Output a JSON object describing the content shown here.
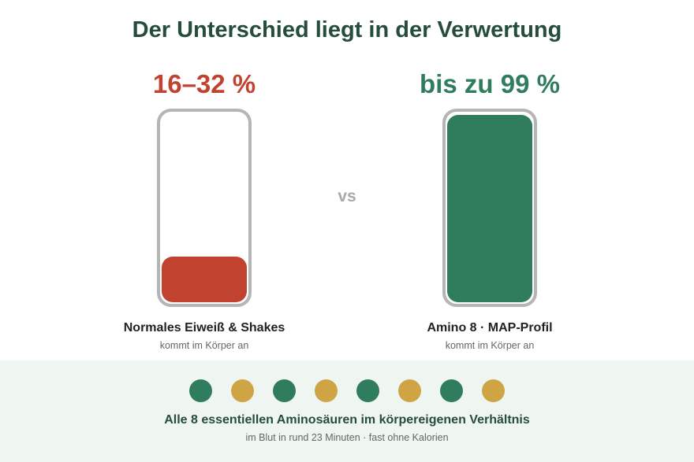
{
  "title": "Der Unterschied liegt in der Verwertung",
  "left": {
    "percent": "16–32 %",
    "fill_fraction": 0.24,
    "label": "Normales Eiweiß & Shakes",
    "sublabel": "kommt im Körper an",
    "color": "#c1432f"
  },
  "vs": "vs",
  "right": {
    "percent": "bis zu 99 %",
    "fill_fraction": 0.99,
    "label": "Amino 8 · MAP-Profil",
    "sublabel": "kommt im Körper an",
    "color": "#2f7d5c"
  },
  "bottom": {
    "dots": [
      "green",
      "gold",
      "green",
      "gold",
      "green",
      "gold",
      "green",
      "gold"
    ],
    "title": "Alle 8 essentiellen Aminosäuren im körpereigenen Verhältnis",
    "subtitle": "im Blut in rund 23 Minuten · fast ohne Kalorien"
  },
  "colors": {
    "green": "#2f7d5c",
    "gold": "#cfa445",
    "red": "#c1432f",
    "title": "#264d3b",
    "band": "#eff5f1"
  }
}
